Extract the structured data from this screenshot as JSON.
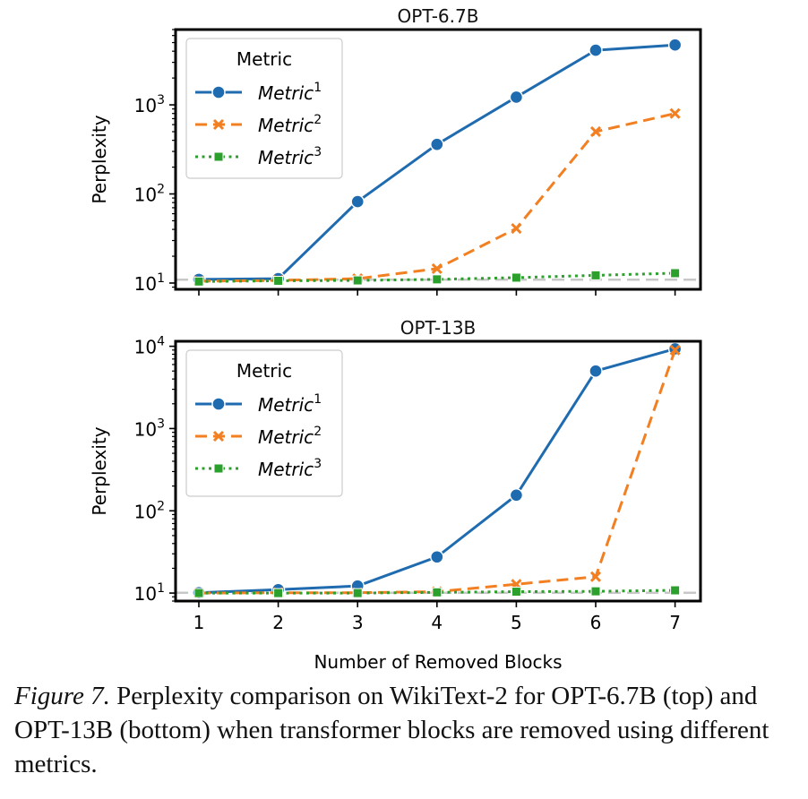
{
  "chart_data": [
    {
      "type": "line",
      "title": "OPT-6.7B",
      "xlabel": "",
      "ylabel": "Perplexity",
      "yscale": "log",
      "ylim": [
        8.5,
        7000
      ],
      "y_ticks": [
        10,
        100,
        1000
      ],
      "x": [
        1,
        2,
        3,
        4,
        5,
        6,
        7
      ],
      "reference_line": 10.9,
      "legend": {
        "title": "Metric",
        "placement": "top-left"
      },
      "series": [
        {
          "name": "Metric",
          "sup": "1",
          "marker": "circle",
          "style": "solid",
          "color": "#1f6bb0",
          "values": [
            11.0,
            11.2,
            82,
            360,
            1220,
            4100,
            4700
          ]
        },
        {
          "name": "Metric",
          "sup": "2",
          "marker": "x",
          "style": "dashed",
          "color": "#f28022",
          "values": [
            10.5,
            10.7,
            11.2,
            14.5,
            41,
            500,
            800
          ]
        },
        {
          "name": "Metric",
          "sup": "3",
          "marker": "square",
          "style": "dotted",
          "color": "#2ca02c",
          "values": [
            10.4,
            10.6,
            10.7,
            11.0,
            11.5,
            12.2,
            12.9
          ]
        }
      ]
    },
    {
      "type": "line",
      "title": "OPT-13B",
      "xlabel": "Number of Removed Blocks",
      "ylabel": "Perplexity",
      "yscale": "log",
      "ylim": [
        8.0,
        11500
      ],
      "y_ticks": [
        10,
        100,
        1000,
        10000
      ],
      "x": [
        1,
        2,
        3,
        4,
        5,
        6,
        7
      ],
      "x_ticks": [
        "1",
        "2",
        "3",
        "4",
        "5",
        "6",
        "7"
      ],
      "reference_line": 10.1,
      "legend": {
        "title": "Metric",
        "placement": "top-left"
      },
      "series": [
        {
          "name": "Metric",
          "sup": "1",
          "marker": "circle",
          "style": "solid",
          "color": "#1f6bb0",
          "values": [
            10.1,
            11.0,
            12.2,
            27.5,
            155,
            5000,
            9300
          ]
        },
        {
          "name": "Metric",
          "sup": "2",
          "marker": "x",
          "style": "dashed",
          "color": "#f28022",
          "values": [
            10.0,
            10.1,
            10.1,
            10.4,
            12.8,
            15.8,
            9000
          ]
        },
        {
          "name": "Metric",
          "sup": "3",
          "marker": "square",
          "style": "dotted",
          "color": "#2ca02c",
          "values": [
            10.0,
            10.0,
            10.0,
            10.2,
            10.4,
            10.5,
            10.8
          ]
        }
      ]
    }
  ],
  "caption": {
    "label": "Figure 7.",
    "text": " Perplexity comparison on WikiText-2 for OPT-6.7B (top) and OPT-13B (bottom) when transformer blocks are removed using different metrics."
  }
}
